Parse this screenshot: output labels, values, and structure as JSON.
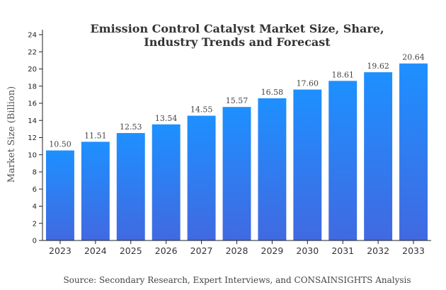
{
  "chart_data": {
    "type": "bar",
    "title_lines": [
      "Emission Control Catalyst Market Size, Share,",
      "Industry Trends and Forecast"
    ],
    "ylabel": "Market Size (Billion)",
    "xlabel": "",
    "source": "Source: Secondary Research, Expert Interviews, and CONSAINSIGHTS Analysis",
    "categories": [
      "2023",
      "2024",
      "2025",
      "2026",
      "2027",
      "2028",
      "2029",
      "2030",
      "2031",
      "2032",
      "2033"
    ],
    "values": [
      10.5,
      11.51,
      12.53,
      13.54,
      14.55,
      15.57,
      16.58,
      17.6,
      18.61,
      19.62,
      20.64
    ],
    "value_labels": [
      "10.50",
      "11.51",
      "12.53",
      "13.54",
      "14.55",
      "15.57",
      "16.58",
      "17.60",
      "18.61",
      "19.62",
      "20.64"
    ],
    "ylim": [
      0,
      24
    ],
    "yticks": [
      "0",
      "2",
      "4",
      "6",
      "8",
      "10",
      "12",
      "14",
      "16",
      "18",
      "20",
      "22",
      "24"
    ],
    "grid": false,
    "legend": "none",
    "colors": {
      "bar_top": "#1e90ff",
      "bar_bottom": "#4169e1",
      "axis": "#222222"
    }
  }
}
